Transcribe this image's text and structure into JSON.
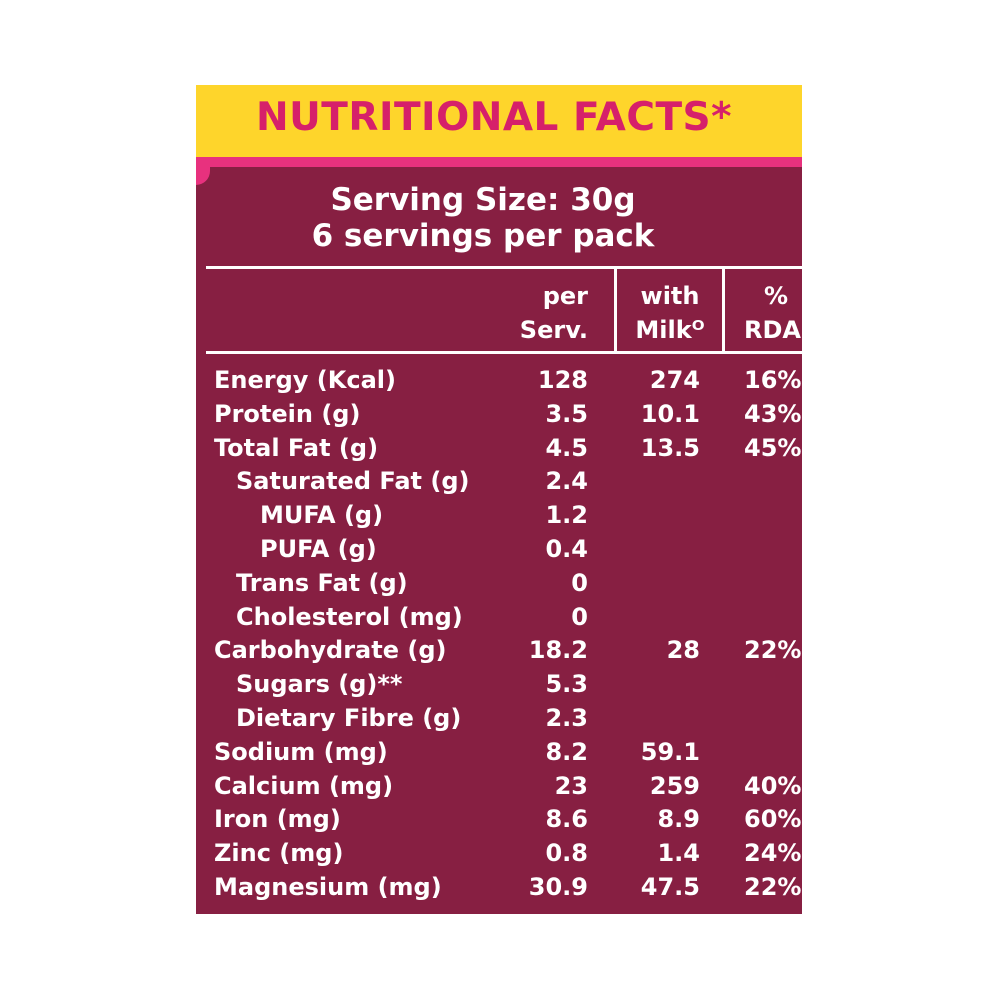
{
  "header": {
    "title": "NUTRITIONAL FACTS*"
  },
  "serving": {
    "line1": "Serving Size: 30g",
    "line2": "6 servings per pack"
  },
  "columns": {
    "per_serving": [
      "per",
      "Serv."
    ],
    "with_milk": [
      "with",
      "Milkᴼ"
    ],
    "rda": [
      "%",
      "RDA"
    ]
  },
  "rows": [
    {
      "label": "Energy (Kcal)",
      "indent": 0,
      "per": "128",
      "milk": "274",
      "rda": "16%"
    },
    {
      "label": "Protein (g)",
      "indent": 0,
      "per": "3.5",
      "milk": "10.1",
      "rda": "43%"
    },
    {
      "label": "Total Fat (g)",
      "indent": 0,
      "per": "4.5",
      "milk": "13.5",
      "rda": "45%"
    },
    {
      "label": "Saturated Fat (g)",
      "indent": 1,
      "per": "2.4",
      "milk": "",
      "rda": ""
    },
    {
      "label": "MUFA (g)",
      "indent": 2,
      "per": "1.2",
      "milk": "",
      "rda": ""
    },
    {
      "label": "PUFA (g)",
      "indent": 2,
      "per": "0.4",
      "milk": "",
      "rda": ""
    },
    {
      "label": "Trans Fat (g)",
      "indent": 1,
      "per": "0",
      "milk": "",
      "rda": ""
    },
    {
      "label": "Cholesterol (mg)",
      "indent": 1,
      "per": "0",
      "milk": "",
      "rda": ""
    },
    {
      "label": "Carbohydrate (g)",
      "indent": 0,
      "per": "18.2",
      "milk": "28",
      "rda": "22%"
    },
    {
      "label": "Sugars (g)**",
      "indent": 1,
      "per": "5.3",
      "milk": "",
      "rda": ""
    },
    {
      "label": "Dietary Fibre (g)",
      "indent": 1,
      "per": "2.3",
      "milk": "",
      "rda": ""
    },
    {
      "label": "Sodium (mg)",
      "indent": 0,
      "per": "8.2",
      "milk": "59.1",
      "rda": ""
    },
    {
      "label": "Calcium (mg)",
      "indent": 0,
      "per": "23",
      "milk": "259",
      "rda": "40%"
    },
    {
      "label": "Iron (mg)",
      "indent": 0,
      "per": "8.6",
      "milk": "8.9",
      "rda": "60%"
    },
    {
      "label": "Zinc (mg)",
      "indent": 0,
      "per": "0.8",
      "milk": "1.4",
      "rda": "24%"
    },
    {
      "label": "Magnesium (mg)",
      "indent": 0,
      "per": "30.9",
      "milk": "47.5",
      "rda": "22%"
    }
  ]
}
